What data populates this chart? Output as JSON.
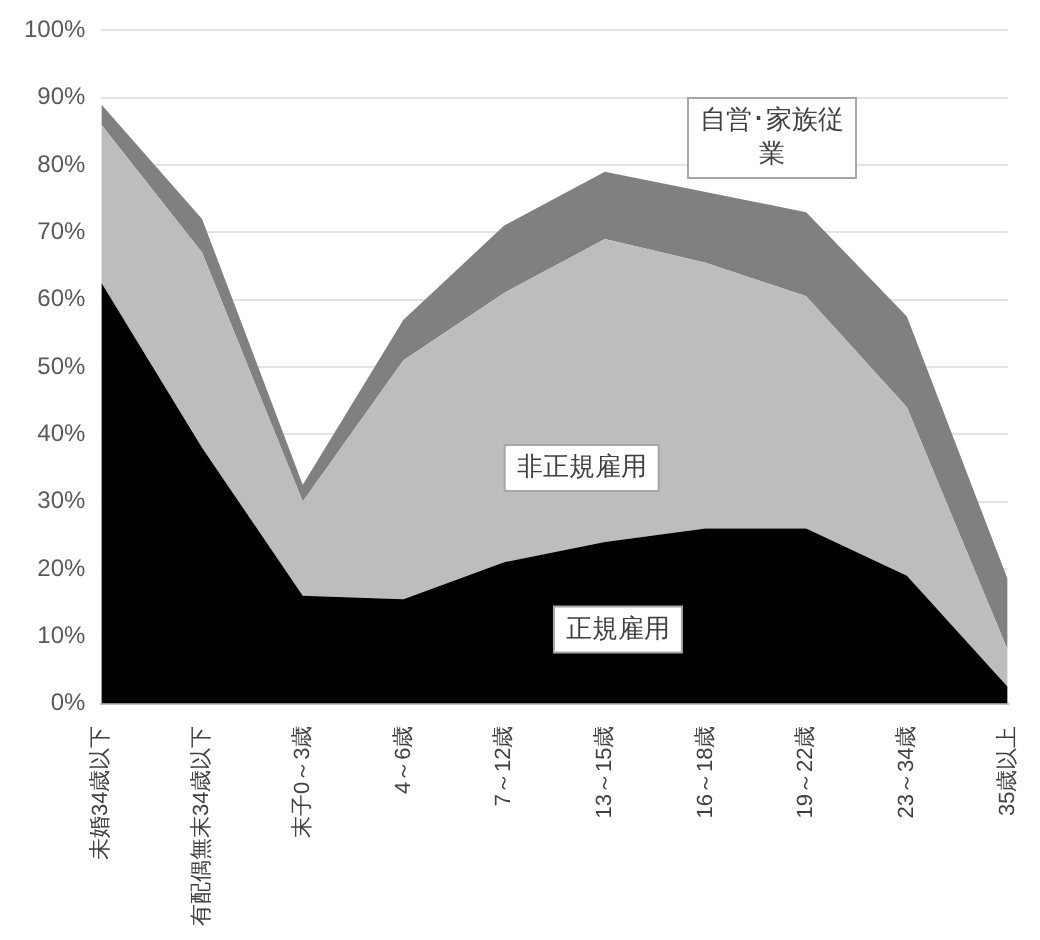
{
  "chart_data": {
    "type": "area",
    "stacked": true,
    "categories": [
      "未婚34歳以下",
      "有配偶無末34歳以下",
      "末子0～3歳",
      "4～6歳",
      "7～12歳",
      "13～15歳",
      "16～18歳",
      "19～22歳",
      "23～34歳",
      "35歳以上"
    ],
    "series": [
      {
        "name": "正規雇用",
        "color": "#000000",
        "values": [
          62.5,
          38,
          16,
          15.5,
          21,
          24,
          26,
          26,
          19,
          2.5
        ]
      },
      {
        "name": "非正規雇用",
        "color": "#bdbdbd",
        "values": [
          23.5,
          29,
          14,
          35.5,
          40,
          45,
          39.5,
          34.5,
          25,
          5.5
        ]
      },
      {
        "name": "自営･家族従業",
        "color": "#808080",
        "values": [
          3,
          5,
          2.5,
          6,
          10,
          10,
          10.5,
          12.5,
          13.5,
          10.5
        ]
      }
    ],
    "ylim": [
      0,
      100
    ],
    "yticks": [
      {
        "value": 0,
        "label": "0%"
      },
      {
        "value": 10,
        "label": "10%"
      },
      {
        "value": 20,
        "label": "20%"
      },
      {
        "value": 30,
        "label": "30%"
      },
      {
        "value": 40,
        "label": "40%"
      },
      {
        "value": 50,
        "label": "50%"
      },
      {
        "value": 60,
        "label": "60%"
      },
      {
        "value": 70,
        "label": "70%"
      },
      {
        "value": 80,
        "label": "80%"
      },
      {
        "value": 90,
        "label": "90%"
      },
      {
        "value": 100,
        "label": "100%"
      }
    ],
    "grid": "y",
    "legend": false
  }
}
